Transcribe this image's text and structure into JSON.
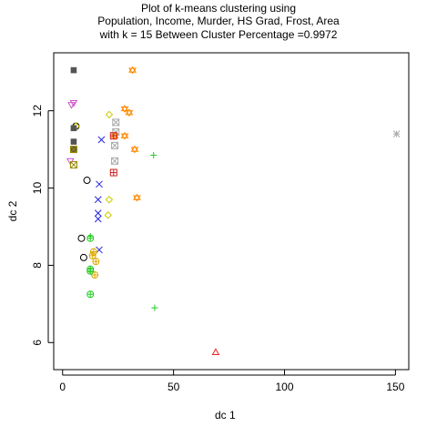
{
  "chart_data": {
    "type": "scatter",
    "title": [
      "Plot of k-means clustering using",
      "Population, Income, Murder, HS Grad, Frost, Area",
      "with  k = 15 Between Cluster Percentage =0.9972"
    ],
    "xlabel": "dc 1",
    "ylabel": "dc 2",
    "xlim": [
      -4,
      156
    ],
    "ylim": [
      5.3,
      13.5
    ],
    "xticks": [
      0,
      50,
      100,
      150
    ],
    "yticks": [
      6,
      8,
      10,
      12
    ],
    "grid": false,
    "legend": "none",
    "series": [
      {
        "symbol": "circle",
        "color": "#000000",
        "points": [
          [
            6.0,
            11.6
          ],
          [
            11.0,
            10.2
          ],
          [
            8.5,
            8.7
          ],
          [
            9.5,
            8.2
          ]
        ]
      },
      {
        "symbol": "triangle",
        "color": "#ee2222",
        "points": [
          [
            69.0,
            5.75
          ]
        ]
      },
      {
        "symbol": "plus",
        "color": "#22cc22",
        "points": [
          [
            41.0,
            10.85
          ],
          [
            41.5,
            6.9
          ],
          [
            12.5,
            8.75
          ]
        ]
      },
      {
        "symbol": "x",
        "color": "#2222dd",
        "points": [
          [
            17.5,
            11.25
          ],
          [
            16.5,
            10.1
          ],
          [
            16.0,
            9.7
          ],
          [
            16.0,
            9.35
          ],
          [
            16.0,
            9.2
          ],
          [
            16.5,
            8.4
          ]
        ]
      },
      {
        "symbol": "diamond",
        "color": "#cccc00",
        "points": [
          [
            21.0,
            11.9
          ],
          [
            21.0,
            9.7
          ],
          [
            20.5,
            9.3
          ],
          [
            6.0,
            11.6
          ]
        ]
      },
      {
        "symbol": "triangle-down",
        "color": "#cc55cc",
        "points": [
          [
            4.0,
            12.15
          ],
          [
            5.0,
            12.2
          ],
          [
            3.5,
            10.7
          ]
        ]
      },
      {
        "symbol": "crossed-square",
        "color": "#aaaaaa",
        "points": [
          [
            24.0,
            11.7
          ],
          [
            24.0,
            11.45
          ],
          [
            23.5,
            11.1
          ],
          [
            23.5,
            10.7
          ]
        ]
      },
      {
        "symbol": "asterisk",
        "color": "#aaaaaa",
        "points": [
          [
            150.5,
            11.4
          ]
        ]
      },
      {
        "symbol": "star-of-david",
        "color": "#ff8800",
        "points": [
          [
            31.5,
            13.05
          ],
          [
            28.0,
            12.05
          ],
          [
            30.0,
            11.95
          ],
          [
            28.0,
            11.35
          ],
          [
            32.5,
            11.0
          ],
          [
            33.5,
            9.75
          ],
          [
            23.5,
            11.35
          ]
        ]
      },
      {
        "symbol": "circle-plus",
        "color": "#ddaa00",
        "points": [
          [
            13.5,
            8.25
          ],
          [
            14.0,
            8.35
          ],
          [
            15.0,
            8.1
          ],
          [
            14.5,
            7.75
          ]
        ]
      },
      {
        "symbol": "circle-plus",
        "color": "#22cc22",
        "points": [
          [
            12.5,
            8.7
          ],
          [
            12.5,
            7.9
          ],
          [
            12.5,
            7.85
          ],
          [
            12.5,
            7.25
          ]
        ]
      },
      {
        "symbol": "square-plus",
        "color": "#cc2222",
        "points": [
          [
            23.0,
            11.35
          ],
          [
            23.0,
            10.4
          ]
        ]
      },
      {
        "symbol": "square",
        "color": "#555555",
        "points": [
          [
            5.0,
            13.05
          ],
          [
            5.0,
            11.55
          ],
          [
            5.0,
            11.2
          ],
          [
            5.0,
            11.0
          ]
        ]
      },
      {
        "symbol": "crossed-square",
        "color": "#998800",
        "points": [
          [
            5.0,
            11.0
          ],
          [
            5.0,
            10.6
          ]
        ]
      }
    ]
  }
}
